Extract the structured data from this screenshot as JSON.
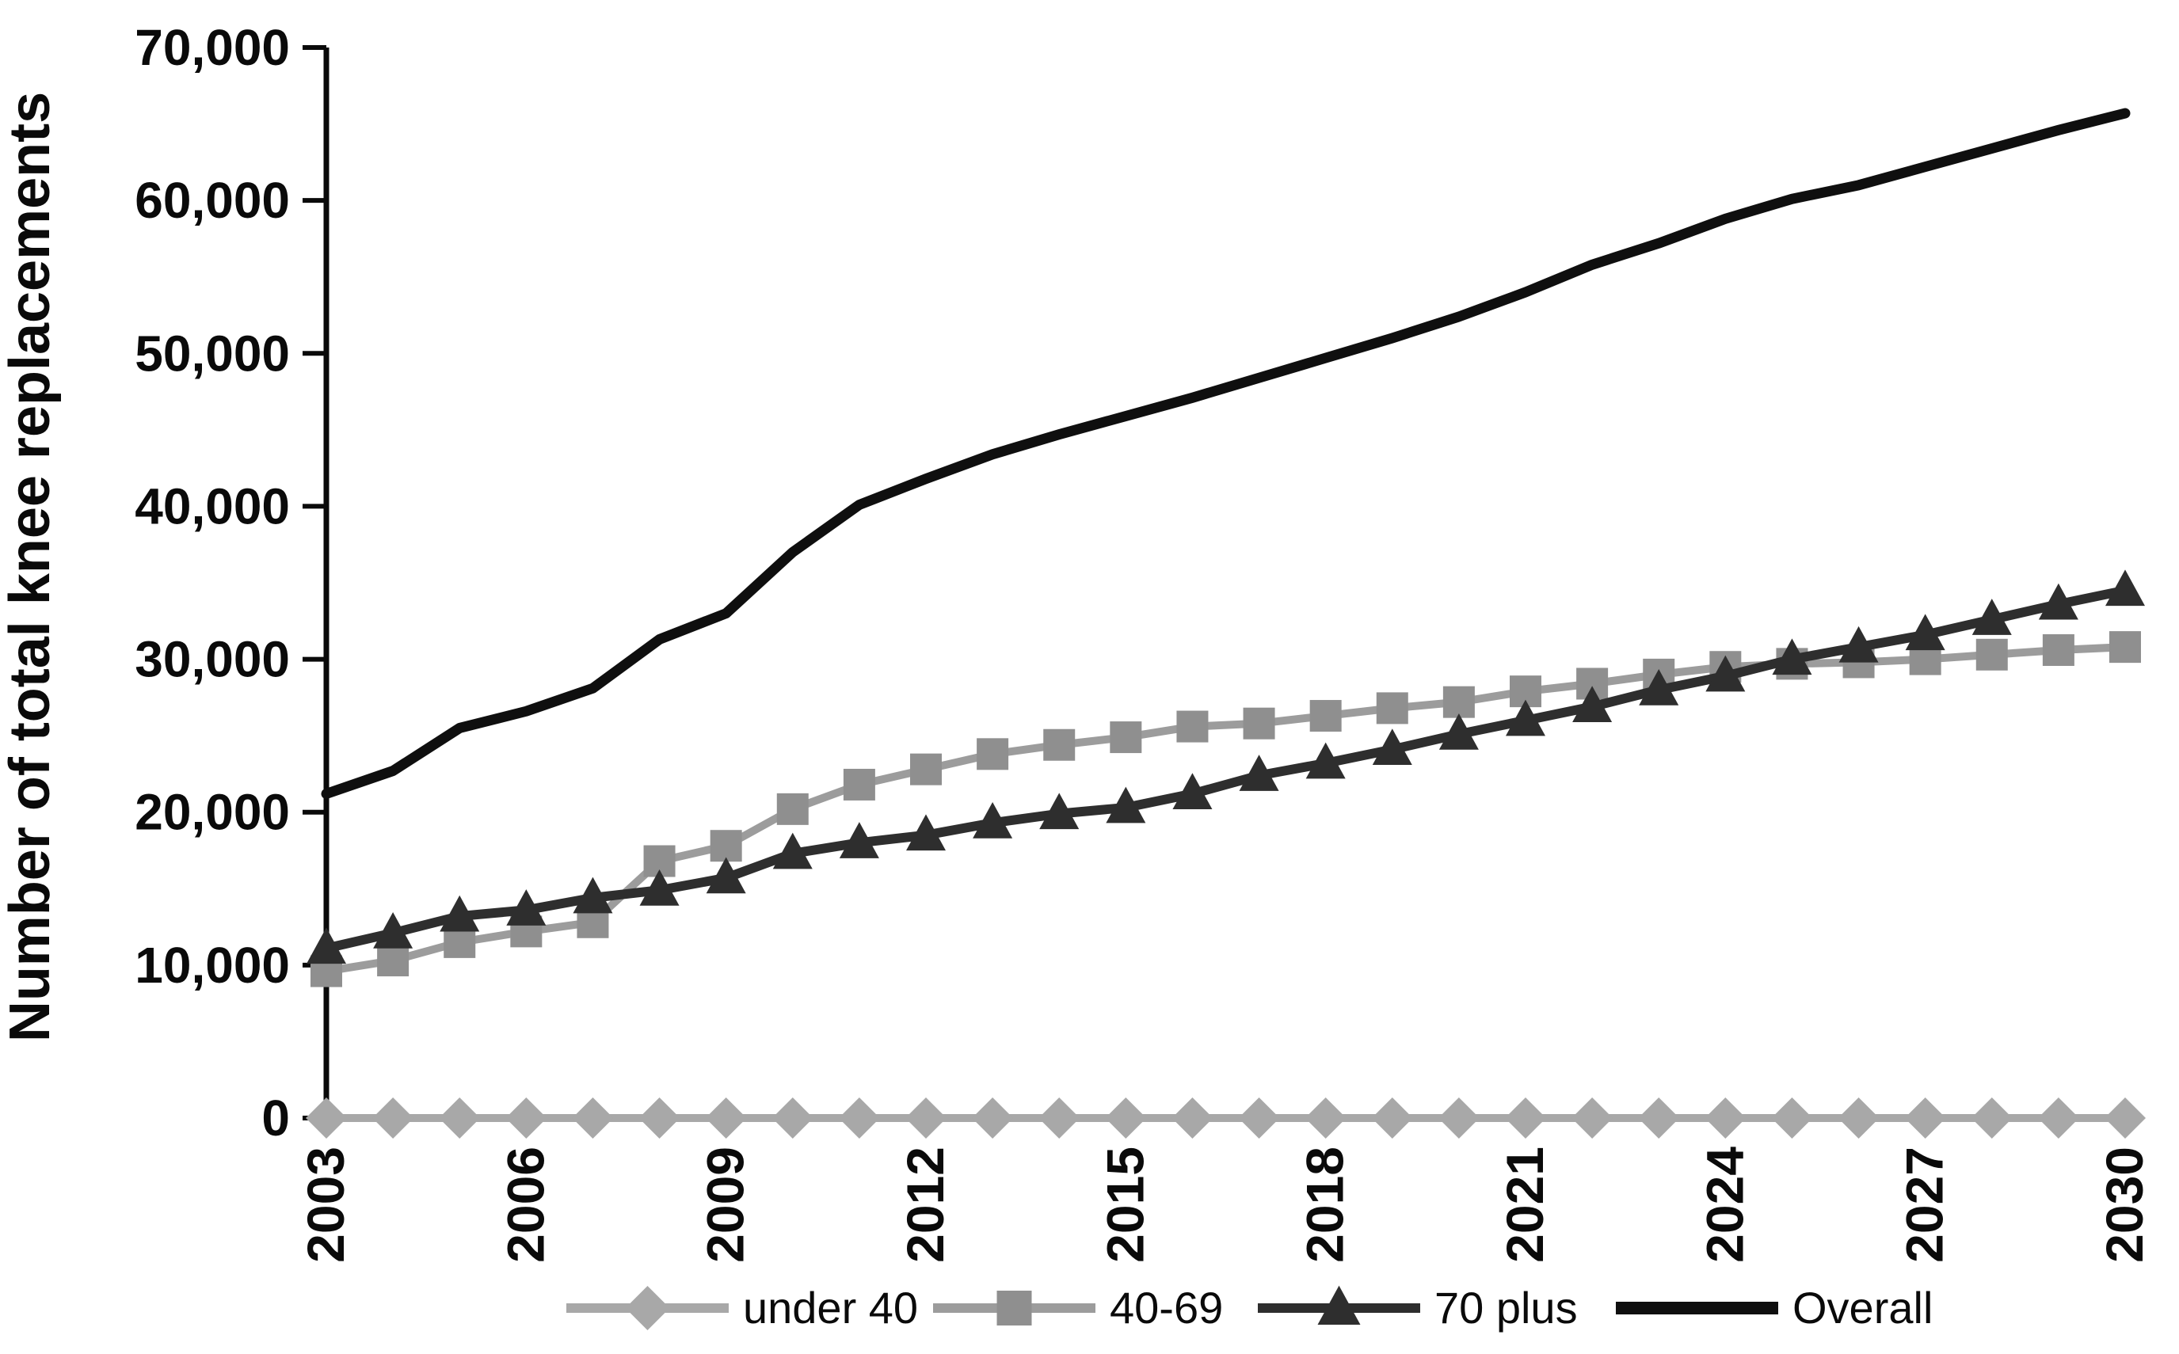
{
  "figure": {
    "background": "#ffffff",
    "text_color": "#0a0a0a"
  },
  "chart_data": {
    "type": "line",
    "title": "",
    "xlabel": "",
    "ylabel": "Number of total knee replacements",
    "x_start": 2003,
    "x_end": 2030,
    "x": [
      2003,
      2004,
      2005,
      2006,
      2007,
      2008,
      2009,
      2010,
      2011,
      2012,
      2013,
      2014,
      2015,
      2016,
      2017,
      2018,
      2019,
      2020,
      2021,
      2022,
      2023,
      2024,
      2025,
      2026,
      2027,
      2028,
      2029,
      2030
    ],
    "x_tick_labels": [
      "2003",
      "2006",
      "2009",
      "2012",
      "2015",
      "2018",
      "2021",
      "2024",
      "2027",
      "2030"
    ],
    "x_tick_step": 3,
    "ylim": [
      0,
      70000
    ],
    "y_tick_interval": 10000,
    "y_tick_labels": [
      "0",
      "10,000",
      "20,000",
      "30,000",
      "40,000",
      "50,000",
      "60,000",
      "70,000"
    ],
    "grid": false,
    "legend_position": "bottom",
    "series": [
      {
        "name": "under 40",
        "marker": "diamond",
        "color": "#a8a8a8",
        "line_color": "#a8a8a8",
        "values": [
          0,
          0,
          0,
          0,
          0,
          0,
          0,
          0,
          0,
          0,
          0,
          0,
          0,
          0,
          0,
          0,
          0,
          0,
          0,
          0,
          0,
          0,
          0,
          0,
          0,
          0,
          0,
          0
        ]
      },
      {
        "name": "40-69",
        "marker": "square",
        "color": "#8f8f8f",
        "line_color": "#9c9c9c",
        "values": [
          9600,
          10300,
          11500,
          12200,
          12800,
          16800,
          17800,
          20200,
          21800,
          22800,
          23800,
          24400,
          24900,
          25600,
          25800,
          26300,
          26800,
          27200,
          27900,
          28400,
          29000,
          29500,
          29700,
          29800,
          30000,
          30300,
          30600,
          30800
        ]
      },
      {
        "name": "70 plus",
        "marker": "triangle",
        "color": "#2e2e2e",
        "line_color": "#2e2e2e",
        "values": [
          11100,
          12100,
          13200,
          13600,
          14400,
          14900,
          15700,
          17300,
          18000,
          18500,
          19300,
          19900,
          20300,
          21200,
          22400,
          23200,
          24100,
          25100,
          26000,
          26900,
          28000,
          28900,
          30000,
          30800,
          31600,
          32600,
          33600,
          34500
        ]
      },
      {
        "name": "Overall",
        "marker": "none",
        "color": "#0f0f0f",
        "line_color": "#0f0f0f",
        "values": [
          21200,
          22700,
          25500,
          26600,
          28100,
          31300,
          33000,
          37000,
          40100,
          41800,
          43400,
          44700,
          45900,
          47100,
          48400,
          49700,
          51000,
          52400,
          54000,
          55800,
          57200,
          58800,
          60100,
          61000,
          62200,
          63400,
          64600,
          65700
        ]
      }
    ]
  }
}
